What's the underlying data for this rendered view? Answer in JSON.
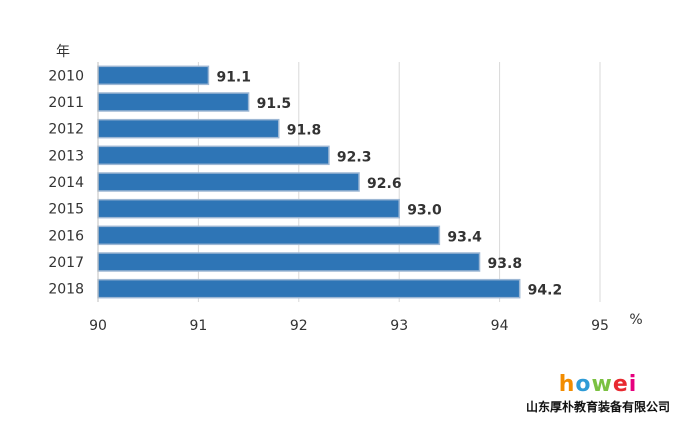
{
  "chart_data": {
    "type": "bar",
    "orientation": "horizontal",
    "categories": [
      "2010",
      "2011",
      "2012",
      "2013",
      "2014",
      "2015",
      "2016",
      "2017",
      "2018"
    ],
    "values": [
      91.1,
      91.5,
      91.8,
      92.3,
      92.6,
      93.0,
      93.4,
      93.8,
      94.2
    ],
    "value_labels": [
      "91.1",
      "91.5",
      "91.8",
      "92.3",
      "92.6",
      "93.0",
      "93.4",
      "93.8",
      "94.2"
    ],
    "title": "",
    "xlabel": "%",
    "ylabel": "年",
    "xlim": [
      90,
      95
    ],
    "xticks": [
      "90",
      "91",
      "92",
      "93",
      "94",
      "95"
    ],
    "grid": "vertical",
    "bar_color": "#2E75B6",
    "bar_edge_color": "#9DB7D4"
  },
  "brand": {
    "logo_letters": [
      "h",
      "o",
      "w",
      "e",
      "i"
    ],
    "logo_colors": [
      "#F28C00",
      "#2E9BD6",
      "#7BC142",
      "#E8292F",
      "#E6007E"
    ],
    "company": "山东厚朴教育装备有限公司"
  }
}
